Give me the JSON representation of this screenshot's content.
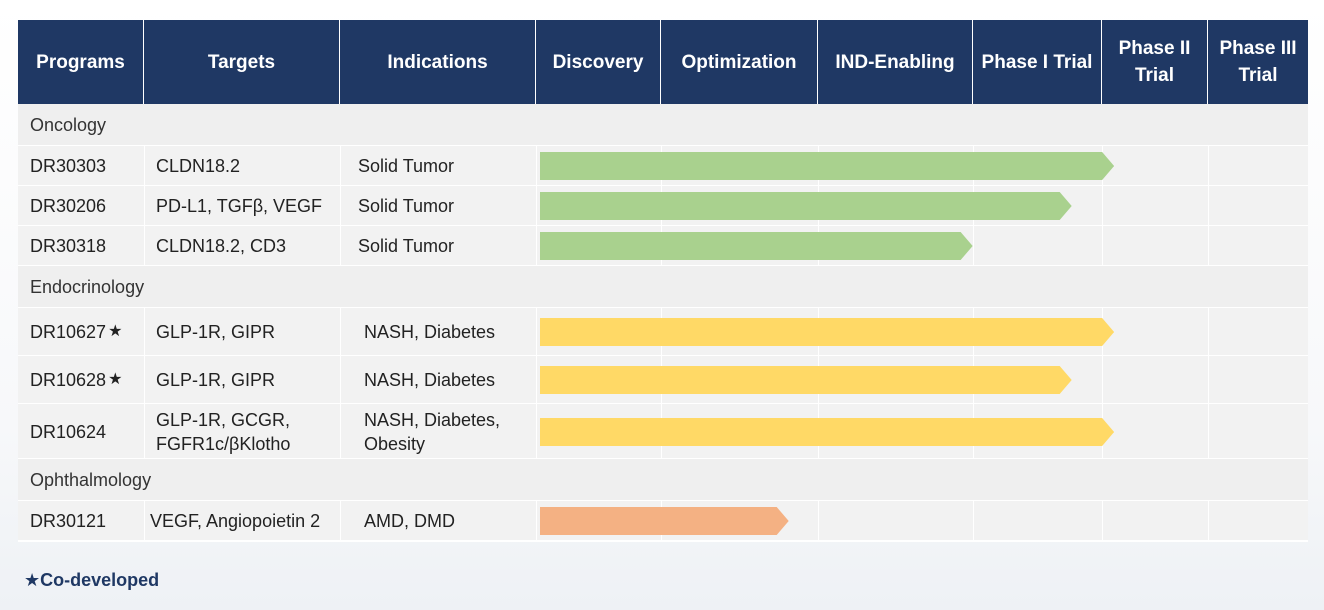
{
  "headers": [
    "Programs",
    "Targets",
    "Indications",
    "Discovery",
    "Optimization",
    "IND-Enabling",
    "Phase I Trial",
    "Phase II Trial",
    "Phase III Trial"
  ],
  "header_lines": [
    [
      "Programs"
    ],
    [
      "Targets"
    ],
    [
      "Indications"
    ],
    [
      "Discovery"
    ],
    [
      "Optimization"
    ],
    [
      "IND-Enabling"
    ],
    [
      "Phase I Trial"
    ],
    [
      "Phase II",
      "Trial"
    ],
    [
      "Phase III",
      "Trial"
    ]
  ],
  "colors": {
    "header_bg": "#1f3864",
    "oncology": "#a9d18e",
    "endocrinology": "#ffd966",
    "ophthalmology": "#f4b183"
  },
  "categories": [
    {
      "name": "Oncology",
      "color_key": "oncology",
      "programs": [
        {
          "program": "DR30303",
          "starred": false,
          "targets": [
            "CLDN18.2"
          ],
          "indications": [
            "Solid Tumor"
          ],
          "stage_progress": 4.1
        },
        {
          "program": "DR30206",
          "starred": false,
          "targets": [
            "PD-L1, TGFβ, VEGF"
          ],
          "indications": [
            "Solid Tumor"
          ],
          "stage_progress": 3.8
        },
        {
          "program": "DR30318",
          "starred": false,
          "targets": [
            "CLDN18.2, CD3"
          ],
          "indications": [
            "Solid Tumor"
          ],
          "stage_progress": 3.1
        }
      ]
    },
    {
      "name": "Endocrinology",
      "color_key": "endocrinology",
      "programs": [
        {
          "program": "DR10627",
          "starred": true,
          "targets": [
            "GLP-1R, GIPR"
          ],
          "indications": [
            "NASH, Diabetes"
          ],
          "stage_progress": 4.1
        },
        {
          "program": "DR10628",
          "starred": true,
          "targets": [
            "GLP-1R, GIPR"
          ],
          "indications": [
            "NASH, Diabetes"
          ],
          "stage_progress": 3.8
        },
        {
          "program": "DR10624",
          "starred": false,
          "targets": [
            "GLP-1R, GCGR,",
            "FGFR1c/βKlotho"
          ],
          "indications": [
            "NASH, Diabetes,",
            "Obesity"
          ],
          "stage_progress": 4.1
        }
      ]
    },
    {
      "name": "Ophthalmology",
      "color_key": "ophthalmology",
      "programs": [
        {
          "program": "DR30121",
          "starred": false,
          "targets": [
            "VEGF, Angiopoietin 2"
          ],
          "indications": [
            "AMD, DMD"
          ],
          "stage_progress": 1.8
        }
      ]
    }
  ],
  "star_glyph": "★",
  "footnote": "★Co-developed"
}
